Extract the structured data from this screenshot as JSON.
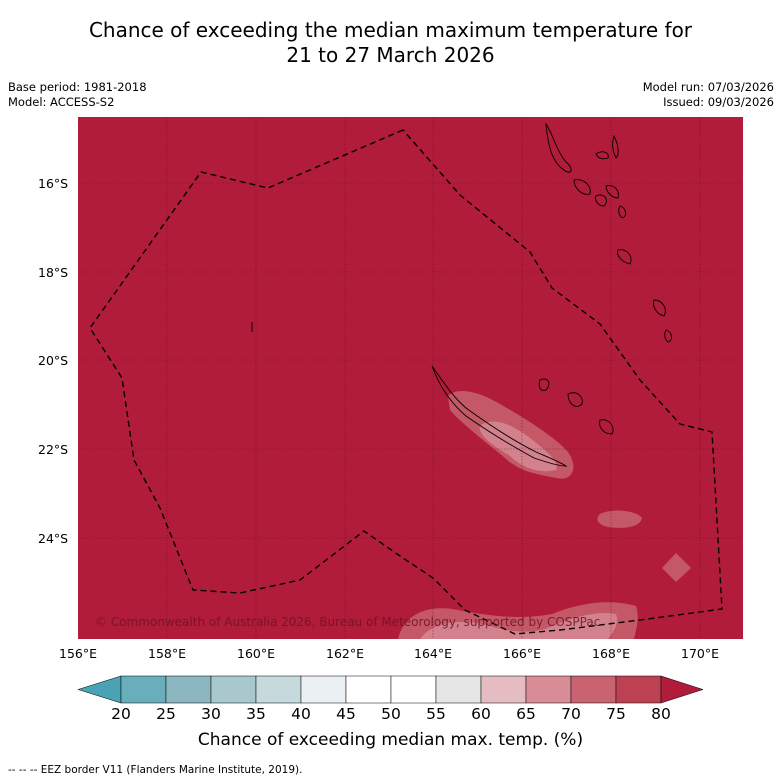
{
  "title_line1": "Chance of exceeding the median maximum temperature for",
  "title_line2": "21 to 27 March 2026",
  "meta_left": [
    "Base period: 1981-2018",
    "Model: ACCESS-S2"
  ],
  "meta_right": [
    "Model run: 07/03/2026",
    "Issued: 09/03/2026"
  ],
  "lat_labels": [
    "16°S",
    "18°S",
    "20°S",
    "22°S",
    "24°S"
  ],
  "lon_labels": [
    "156°E",
    "158°E",
    "160°E",
    "162°E",
    "164°E",
    "166°E",
    "168°E",
    "170°E"
  ],
  "colorbar": {
    "ticks": [
      "20",
      "25",
      "30",
      "35",
      "40",
      "45",
      "50",
      "55",
      "60",
      "65",
      "70",
      "75",
      "80"
    ],
    "colors": [
      "#6aaebb",
      "#8cb7c1",
      "#a9c8cd",
      "#c6d9dd",
      "#ebf1f3",
      "#ffffff",
      "#ffffff",
      "#e6e6e6",
      "#e5bcc1",
      "#d78c96",
      "#c8636f",
      "#bc4252"
    ],
    "low_color": "#4aa3b4",
    "high_color": "#b11c3a",
    "label": "Chance of exceeding median max. temp. (%)"
  },
  "map": {
    "base_color": "#b11c3a",
    "light_color": "#c8636f",
    "lighter_color": "#d78c96"
  },
  "copyright": "© Commonwealth of Australia 2026, Bureau of Meteorology, supported by COSPPac",
  "footnote": "--  --  -- EEZ border V11 (Flanders Marine Institute, 2019)."
}
